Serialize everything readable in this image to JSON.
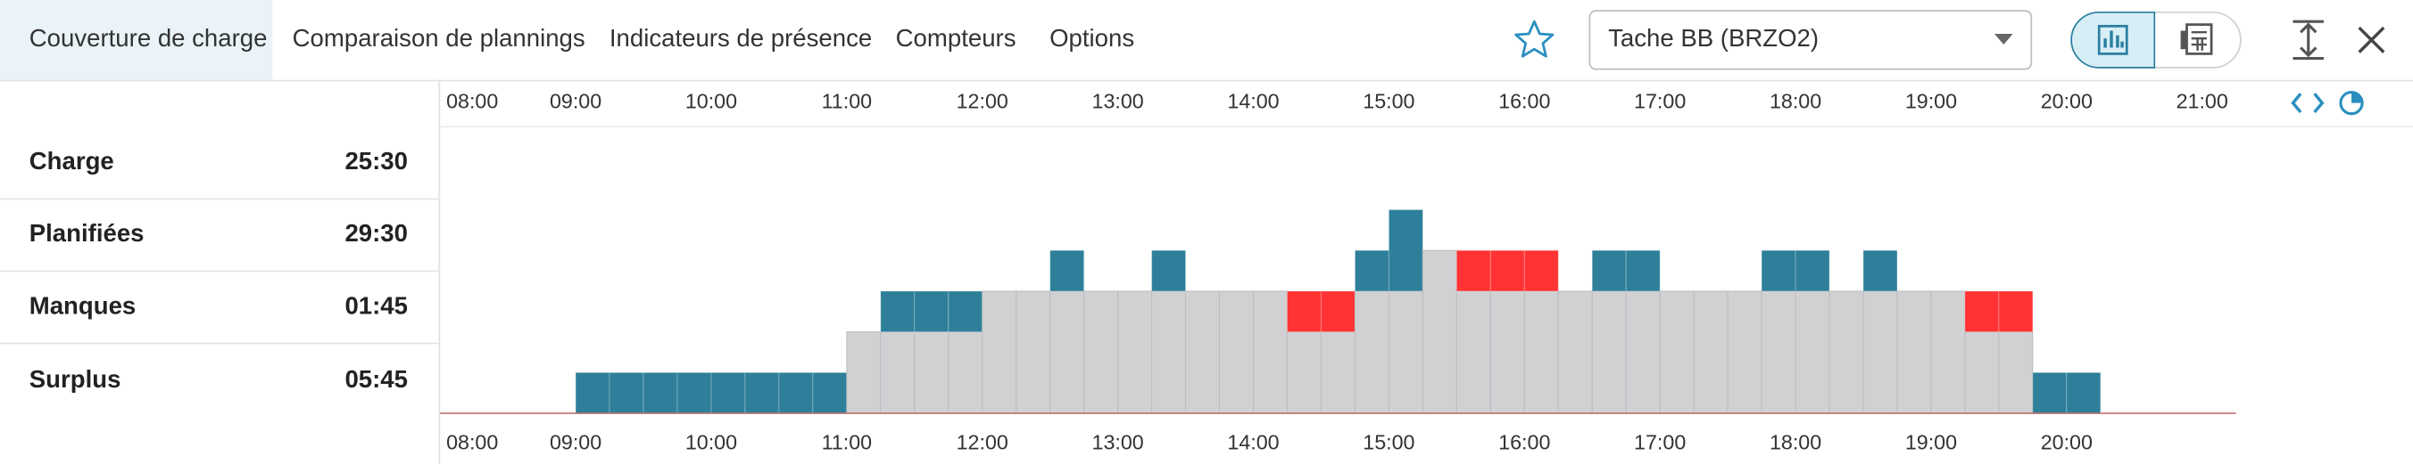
{
  "tabs": [
    "Couverture de charge",
    "Comparaison de plannings",
    "Indicateurs de présence",
    "Compteurs",
    "Options"
  ],
  "selector": {
    "value": "Tache BB (BRZO2)"
  },
  "summary": {
    "rows": [
      [
        "Charge",
        "25:30"
      ],
      [
        "Planifiées",
        "29:30"
      ],
      [
        "Manques",
        "01:45"
      ],
      [
        "Surplus",
        "05:45"
      ]
    ]
  },
  "chart_data": {
    "type": "stacked_histogram",
    "bins": [
      8,
      8.25,
      8.5,
      8.75,
      9,
      9.25,
      9.5,
      9.75,
      10,
      10.25,
      10.5,
      10.75,
      11,
      11.25,
      11.5,
      11.75,
      12,
      12.25,
      12.5,
      12.75,
      13,
      13.25,
      13.5,
      13.75,
      14,
      14.25,
      14.5,
      14.75,
      15,
      15.25,
      15.5,
      15.75,
      16,
      16.25,
      16.5,
      16.75,
      17,
      17.25,
      17.5,
      17.75,
      18,
      18.25,
      18.5,
      18.75,
      19,
      19.25,
      19.5,
      19.75,
      20,
      20.25,
      20.5,
      20.75,
      21,
      21.25
    ],
    "series": [
      {
        "color": "#d1d1d3",
        "values": [
          0,
          0,
          0,
          0,
          0,
          0,
          0,
          0,
          0,
          0,
          0,
          0,
          2,
          2,
          2,
          2,
          3,
          3,
          3,
          3,
          3,
          3,
          3,
          3,
          3,
          2,
          2,
          3,
          3,
          4,
          3,
          3,
          3,
          3,
          3,
          3,
          3,
          3,
          3,
          3,
          3,
          3,
          3,
          3,
          3,
          2,
          2,
          0,
          0,
          0,
          0,
          0,
          0
        ]
      },
      {
        "color": "#2e7f99",
        "values": [
          0,
          0,
          0,
          0,
          1,
          1,
          1,
          1,
          1,
          1,
          1,
          1,
          0,
          1,
          1,
          1,
          0,
          0,
          1,
          0,
          0,
          1,
          0,
          0,
          0,
          0,
          0,
          1,
          2,
          0,
          0,
          0,
          0,
          0,
          1,
          1,
          0,
          0,
          0,
          1,
          1,
          0,
          1,
          0,
          0,
          0,
          0,
          1,
          1,
          0,
          0,
          0,
          0
        ]
      },
      {
        "color": "#ff3333",
        "values": [
          0,
          0,
          0,
          0,
          0,
          0,
          0,
          0,
          0,
          0,
          0,
          0,
          0,
          0,
          0,
          0,
          0,
          0,
          0,
          0,
          0,
          0,
          0,
          0,
          0,
          1,
          1,
          0,
          0,
          0,
          1,
          1,
          1,
          0,
          0,
          0,
          0,
          0,
          0,
          0,
          0,
          0,
          0,
          0,
          0,
          1,
          1,
          0,
          0,
          0,
          0,
          0,
          0
        ]
      }
    ],
    "xlim": [
      8,
      21.25
    ],
    "ylim": [
      0,
      7
    ],
    "xticks": [
      {
        "value": 8,
        "label": "08:00"
      },
      {
        "value": 9,
        "label": "09:00"
      },
      {
        "value": 10,
        "label": "10:00"
      },
      {
        "value": 11,
        "label": "11:00"
      },
      {
        "value": 12,
        "label": "12:00"
      },
      {
        "value": 13,
        "label": "13:00"
      },
      {
        "value": 14,
        "label": "14:00"
      },
      {
        "value": 15,
        "label": "15:00"
      },
      {
        "value": 16,
        "label": "16:00"
      },
      {
        "value": 17,
        "label": "17:00"
      },
      {
        "value": 18,
        "label": "18:00"
      },
      {
        "value": 19,
        "label": "19:00"
      },
      {
        "value": 20,
        "label": "20:00"
      }
    ],
    "x2ticks": [
      {
        "value": 8,
        "label": "08:00"
      },
      {
        "value": 9,
        "label": "09:00"
      },
      {
        "value": 10,
        "label": "10:00"
      },
      {
        "value": 11,
        "label": "11:00"
      },
      {
        "value": 12,
        "label": "12:00"
      },
      {
        "value": 13,
        "label": "13:00"
      },
      {
        "value": 14,
        "label": "14:00"
      },
      {
        "value": 15,
        "label": "15:00"
      },
      {
        "value": 16,
        "label": "16:00"
      },
      {
        "value": 17,
        "label": "17:00"
      },
      {
        "value": 18,
        "label": "18:00"
      },
      {
        "value": 19,
        "label": "19:00"
      },
      {
        "value": 20,
        "label": "20:00"
      },
      {
        "value": 21,
        "label": "21:00"
      }
    ]
  }
}
